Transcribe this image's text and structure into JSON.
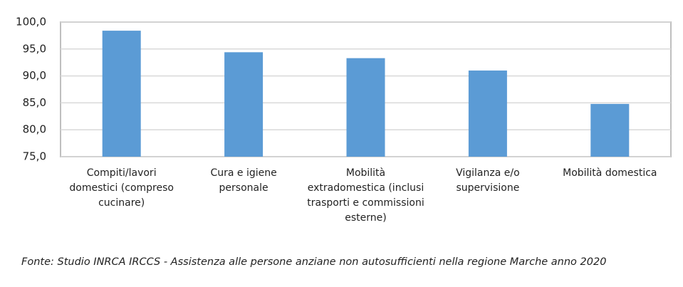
{
  "chart_data": {
    "type": "bar",
    "categories": [
      "Compiti/lavori domestici (compreso cucinare)",
      "Cura e igiene personale",
      "Mobilità extradomestica (inclusi trasporti e commissioni esterne)",
      "Vigilanza e/o supervisione",
      "Mobilità domestica"
    ],
    "values": [
      98.4,
      94.4,
      93.3,
      91.0,
      84.8
    ],
    "color": "#5b9bd5",
    "ylim": [
      75,
      100
    ],
    "yticks": [
      {
        "value": 75,
        "label": "75,0"
      },
      {
        "value": 80,
        "label": "80,0"
      },
      {
        "value": 85,
        "label": "85,0"
      },
      {
        "value": 90,
        "label": "90,0"
      },
      {
        "value": 95,
        "label": "95,0"
      },
      {
        "value": 100,
        "label": "100,0"
      }
    ],
    "grid": true,
    "note": "Fonte: Studio INRCA IRCCS - Assistenza alle persone anziane non autosufficienti nella regione Marche anno 2020"
  }
}
